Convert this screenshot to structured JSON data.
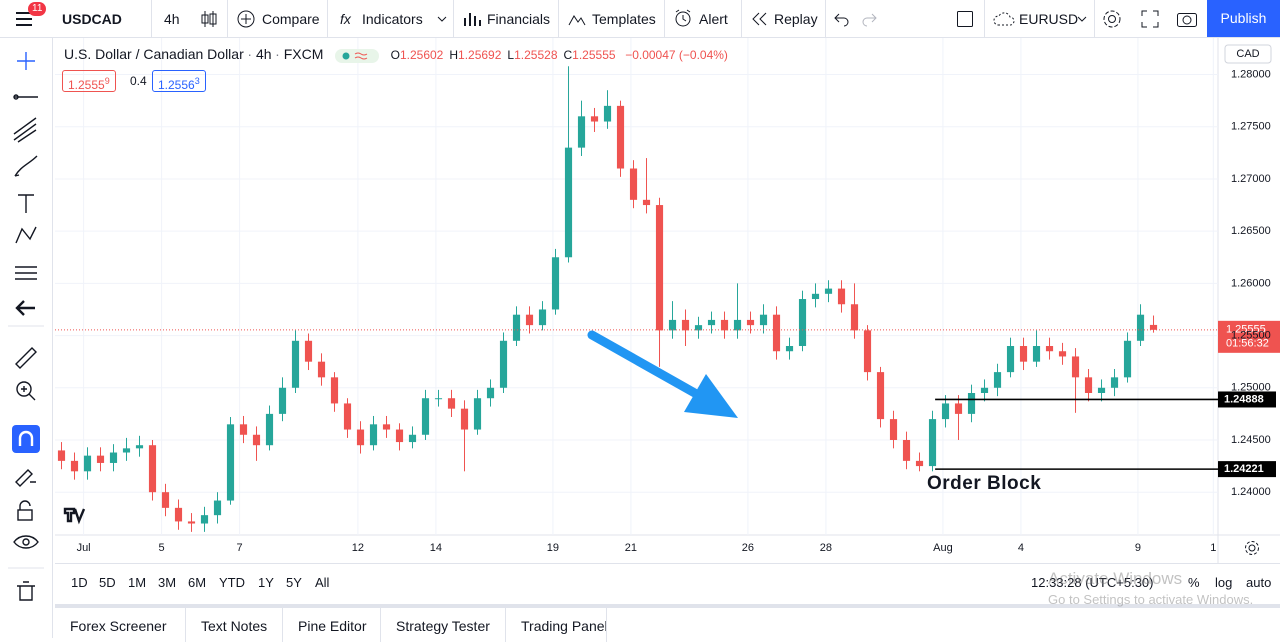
{
  "ui": {
    "toolbar": {
      "notifications": "11",
      "symbol": "USDCAD",
      "interval": "4h",
      "compare": "Compare",
      "indicators": "Indicators",
      "financials": "Financials",
      "templates": "Templates",
      "alert": "Alert",
      "replay": "Replay",
      "layout": "EURUSD",
      "publish": "Publish"
    },
    "legend": {
      "name": "U.S. Dollar / Canadian Dollar",
      "interval": "4h",
      "source": "FXCM",
      "ohlc": [
        {
          "label": "O",
          "value": "1.25602"
        },
        {
          "label": "H",
          "value": "1.25692"
        },
        {
          "label": "L",
          "value": "1.25528"
        },
        {
          "label": "C",
          "value": "1.25555"
        }
      ],
      "change": "−0.00047 (−0.04%)",
      "bid": {
        "main": "1.2555",
        "sup": "9"
      },
      "spread": "0.4",
      "ask": {
        "main": "1.2556",
        "sup": "3"
      }
    },
    "currency": "CAD",
    "annotation": "Order Block",
    "ranges": [
      "1D",
      "5D",
      "1M",
      "3M",
      "6M",
      "YTD",
      "1Y",
      "5Y",
      "All"
    ],
    "clock": "12:33:28 (UTC+5:30)",
    "scale_options": [
      "%",
      "log",
      "auto"
    ],
    "tabs": [
      "Forex Screener",
      "Text Notes",
      "Pine Editor",
      "Strategy Tester",
      "Trading Panel"
    ],
    "watermark": [
      "Activate Windows",
      "Go to Settings to activate Windows."
    ]
  },
  "chart_data": {
    "type": "candlestick",
    "up_color": "#26a69a",
    "down_color": "#ef5350",
    "open": [
      1.244,
      1.243,
      1.242,
      1.2435,
      1.2428,
      1.2438,
      1.2442,
      1.2445,
      1.24,
      1.2385,
      1.2372,
      1.237,
      1.2378,
      1.2392,
      1.2465,
      1.2455,
      1.2445,
      1.2475,
      1.25,
      1.2545,
      1.2525,
      1.251,
      1.2485,
      1.246,
      1.2445,
      1.2465,
      1.246,
      1.2448,
      1.2455,
      1.249,
      1.249,
      1.248,
      1.246,
      1.249,
      1.25,
      1.2545,
      1.257,
      1.256,
      1.2575,
      1.2625,
      1.273,
      1.276,
      1.2755,
      1.277,
      1.271,
      1.268,
      1.2675,
      1.2555,
      1.2565,
      1.2555,
      1.256,
      1.2565,
      1.2555,
      1.2565,
      1.256,
      1.257,
      1.2535,
      1.254,
      1.2585,
      1.259,
      1.2595,
      1.258,
      1.2555,
      1.2515,
      1.247,
      1.245,
      1.243,
      1.2425,
      1.247,
      1.2485,
      1.2475,
      1.2495,
      1.25,
      1.2515,
      1.254,
      1.2525,
      1.254,
      1.2535,
      1.253,
      1.251,
      1.2495,
      1.25,
      1.251,
      1.2545,
      1.25602
    ],
    "high": [
      1.2448,
      1.2438,
      1.2443,
      1.2443,
      1.2446,
      1.2452,
      1.2454,
      1.245,
      1.2408,
      1.2393,
      1.238,
      1.2386,
      1.24,
      1.2472,
      1.2473,
      1.2463,
      1.2483,
      1.251,
      1.2555,
      1.2552,
      1.2533,
      1.2515,
      1.249,
      1.2468,
      1.2473,
      1.2473,
      1.2466,
      1.2463,
      1.2498,
      1.2498,
      1.2498,
      1.2488,
      1.2498,
      1.2508,
      1.2553,
      1.2578,
      1.2578,
      1.2583,
      1.2633,
      1.2808,
      1.2775,
      1.2768,
      1.2785,
      1.2775,
      1.2718,
      1.272,
      1.2682,
      1.2583,
      1.2575,
      1.2568,
      1.2573,
      1.2573,
      1.26,
      1.2573,
      1.258,
      1.2578,
      1.2548,
      1.2593,
      1.26,
      1.2603,
      1.2603,
      1.26,
      1.256,
      1.252,
      1.2478,
      1.2458,
      1.2438,
      1.2478,
      1.2493,
      1.2493,
      1.2503,
      1.2508,
      1.2523,
      1.2548,
      1.2548,
      1.2555,
      1.2548,
      1.2543,
      1.2538,
      1.2518,
      1.2508,
      1.2518,
      1.2553,
      1.258,
      1.25692
    ],
    "low": [
      1.2422,
      1.2412,
      1.2412,
      1.242,
      1.242,
      1.243,
      1.2434,
      1.2392,
      1.2377,
      1.2364,
      1.2362,
      1.2362,
      1.237,
      1.2388,
      1.2447,
      1.243,
      1.244,
      1.2468,
      1.2495,
      1.2517,
      1.2502,
      1.2477,
      1.2452,
      1.2437,
      1.244,
      1.2452,
      1.244,
      1.2442,
      1.245,
      1.2482,
      1.2472,
      1.242,
      1.2455,
      1.2482,
      1.2495,
      1.254,
      1.2552,
      1.2555,
      1.257,
      1.262,
      1.2722,
      1.2745,
      1.2748,
      1.2702,
      1.2672,
      1.2667,
      1.252,
      1.2547,
      1.254,
      1.2547,
      1.2552,
      1.2547,
      1.2547,
      1.2552,
      1.2552,
      1.2527,
      1.2527,
      1.2535,
      1.2577,
      1.2582,
      1.2572,
      1.2547,
      1.2507,
      1.2462,
      1.2442,
      1.2422,
      1.242,
      1.242,
      1.2462,
      1.245,
      1.2467,
      1.2487,
      1.2492,
      1.251,
      1.2517,
      1.252,
      1.2527,
      1.2522,
      1.2476,
      1.2487,
      1.2487,
      1.2492,
      1.2505,
      1.254,
      1.25528
    ],
    "close": [
      1.243,
      1.242,
      1.2435,
      1.2428,
      1.2438,
      1.2442,
      1.2445,
      1.24,
      1.2385,
      1.2372,
      1.237,
      1.2378,
      1.2392,
      1.2465,
      1.2455,
      1.2445,
      1.2475,
      1.25,
      1.2545,
      1.2525,
      1.251,
      1.2485,
      1.246,
      1.2445,
      1.2465,
      1.246,
      1.2448,
      1.2455,
      1.249,
      1.249,
      1.248,
      1.246,
      1.249,
      1.25,
      1.2545,
      1.257,
      1.256,
      1.2575,
      1.2625,
      1.273,
      1.276,
      1.2755,
      1.277,
      1.271,
      1.268,
      1.2675,
      1.2555,
      1.2565,
      1.2555,
      1.256,
      1.2565,
      1.2555,
      1.2565,
      1.256,
      1.257,
      1.2535,
      1.254,
      1.2585,
      1.259,
      1.2595,
      1.258,
      1.2555,
      1.2515,
      1.247,
      1.245,
      1.243,
      1.2425,
      1.247,
      1.2485,
      1.2475,
      1.2495,
      1.25,
      1.2515,
      1.254,
      1.2525,
      1.254,
      1.2535,
      1.253,
      1.251,
      1.2495,
      1.25,
      1.251,
      1.2545,
      1.257,
      1.25555
    ],
    "xlim": [
      -0.5,
      88.96
    ],
    "xticks": [
      {
        "value": 1.7,
        "label": "Jul"
      },
      {
        "value": 7.7,
        "label": "5"
      },
      {
        "value": 13.7,
        "label": "7"
      },
      {
        "value": 22.8,
        "label": "12"
      },
      {
        "value": 28.8,
        "label": "14"
      },
      {
        "value": 37.8,
        "label": "19"
      },
      {
        "value": 43.8,
        "label": "21"
      },
      {
        "value": 52.8,
        "label": "26"
      },
      {
        "value": 58.8,
        "label": "28"
      },
      {
        "value": 67.8,
        "label": "Aug"
      },
      {
        "value": 73.8,
        "label": "4"
      },
      {
        "value": 82.8,
        "label": "9"
      },
      {
        "value": 88.6,
        "label": "1"
      }
    ],
    "ylim": [
      1.2359,
      1.2835
    ],
    "yticks": [
      {
        "value": 1.24,
        "label": "1.24000"
      },
      {
        "value": 1.245,
        "label": "1.24500"
      },
      {
        "value": 1.25,
        "label": "1.25000"
      },
      {
        "value": 1.255,
        "label": "1.25500"
      },
      {
        "value": 1.26,
        "label": "1.26000"
      },
      {
        "value": 1.265,
        "label": "1.26500"
      },
      {
        "value": 1.27,
        "label": "1.27000"
      },
      {
        "value": 1.275,
        "label": "1.27500"
      },
      {
        "value": 1.28,
        "label": "1.28000"
      }
    ],
    "grid": true,
    "price_lines": [
      {
        "value": 1.24888,
        "start": 67.2
      },
      {
        "value": 1.24221,
        "start": 67.2
      }
    ],
    "last_price": {
      "value": 1.25555,
      "countdown": "01:56:32",
      "color": "#ef5350"
    }
  }
}
